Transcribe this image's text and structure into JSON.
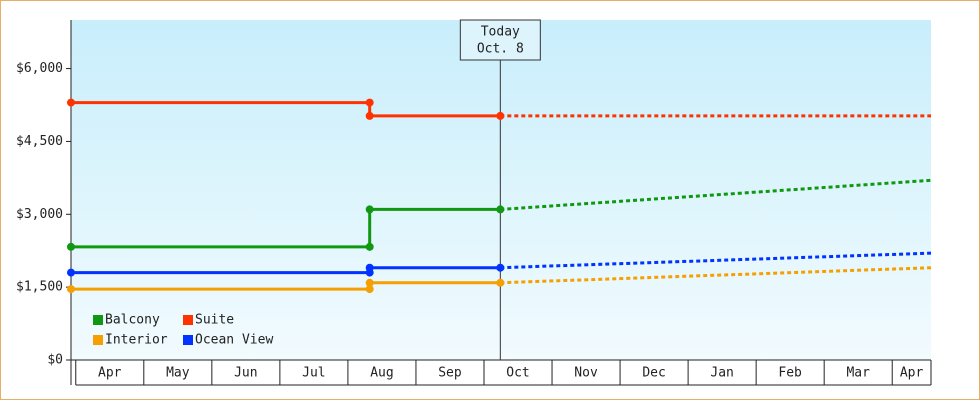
{
  "chart_data": {
    "type": "line",
    "categories": [
      "Apr",
      "May",
      "Jun",
      "Jul",
      "Aug",
      "Sep",
      "Oct",
      "Nov",
      "Dec",
      "Jan",
      "Feb",
      "Mar",
      "Apr"
    ],
    "xlim": [
      -0.07,
      12.57
    ],
    "ylim": [
      0,
      7000
    ],
    "yticks": [
      {
        "value": 0,
        "label": "$0"
      },
      {
        "value": 1500,
        "label": "$1,500"
      },
      {
        "value": 3000,
        "label": "$3,000"
      },
      {
        "value": 4500,
        "label": "$4,500"
      },
      {
        "value": 6000,
        "label": "$6,000"
      }
    ],
    "legend": "bottom-left",
    "annotation": {
      "x": 6.24,
      "lines": [
        "Today",
        "Oct. 8"
      ]
    },
    "series": [
      {
        "name": "Balcony",
        "color": "#109910",
        "x": [
          -0.07,
          4.32,
          4.32,
          6.24
        ],
        "values": [
          2330,
          2330,
          3100,
          3100
        ],
        "forecast": {
          "x": [
            6.24,
            12.57
          ],
          "values": [
            3100,
            3700
          ]
        }
      },
      {
        "name": "Suite",
        "color": "#ff3300",
        "x": [
          -0.07,
          4.32,
          4.32,
          6.24
        ],
        "values": [
          5300,
          5300,
          5025,
          5025
        ],
        "forecast": {
          "x": [
            6.24,
            12.57
          ],
          "values": [
            5025,
            5025
          ]
        }
      },
      {
        "name": "Interior",
        "color": "#f5a000",
        "x": [
          -0.07,
          4.32,
          4.32,
          6.24
        ],
        "values": [
          1460,
          1460,
          1590,
          1590
        ],
        "forecast": {
          "x": [
            6.24,
            12.57
          ],
          "values": [
            1590,
            1900
          ]
        }
      },
      {
        "name": "Ocean View",
        "color": "#0033ff",
        "x": [
          -0.07,
          4.32,
          4.32,
          6.24
        ],
        "values": [
          1800,
          1800,
          1900,
          1900
        ],
        "forecast": {
          "x": [
            6.24,
            12.57
          ],
          "values": [
            1900,
            2200
          ]
        }
      }
    ]
  }
}
